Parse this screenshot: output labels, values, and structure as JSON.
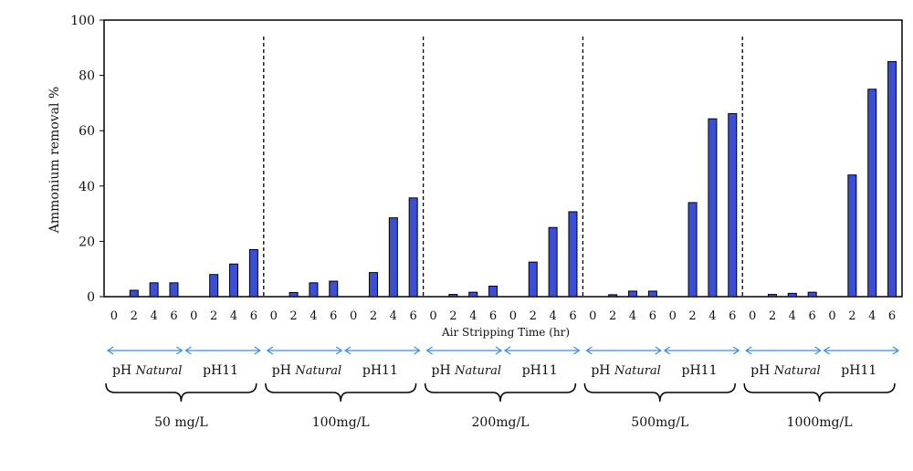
{
  "chart_data": {
    "type": "bar",
    "ylabel": "Ammonium removal %",
    "xlabel": "Air Stripping Time (hr)",
    "ylim": [
      0,
      100
    ],
    "yticks": [
      0,
      20,
      40,
      60,
      80,
      100
    ],
    "time_labels": [
      "0",
      "2",
      "4",
      "6"
    ],
    "bar_color": "#3a4fd6",
    "arrow_color": "#3b8fd9",
    "ph_labels": {
      "natural_prefix": "pH ",
      "natural_suffix": "Natural",
      "alkaline": "pH11"
    },
    "groups": [
      {
        "label": "50 mg/L",
        "natural": [
          0,
          2.3,
          5,
          5
        ],
        "ph11": [
          0,
          8,
          11.8,
          17
        ]
      },
      {
        "label": "100mg/L",
        "natural": [
          0,
          1.5,
          5,
          5.6
        ],
        "ph11": [
          0,
          8.7,
          28.5,
          35.7
        ]
      },
      {
        "label": "200mg/L",
        "natural": [
          0,
          0.8,
          1.6,
          3.8
        ],
        "ph11": [
          0,
          12.5,
          25,
          30.7
        ]
      },
      {
        "label": "500mg/L",
        "natural": [
          0,
          0.7,
          2,
          2
        ],
        "ph11": [
          0,
          34,
          64.3,
          66.2
        ]
      },
      {
        "label": "1000mg/L",
        "natural": [
          0,
          0.8,
          1.2,
          1.6
        ],
        "ph11": [
          0,
          44,
          75,
          85
        ]
      }
    ]
  }
}
